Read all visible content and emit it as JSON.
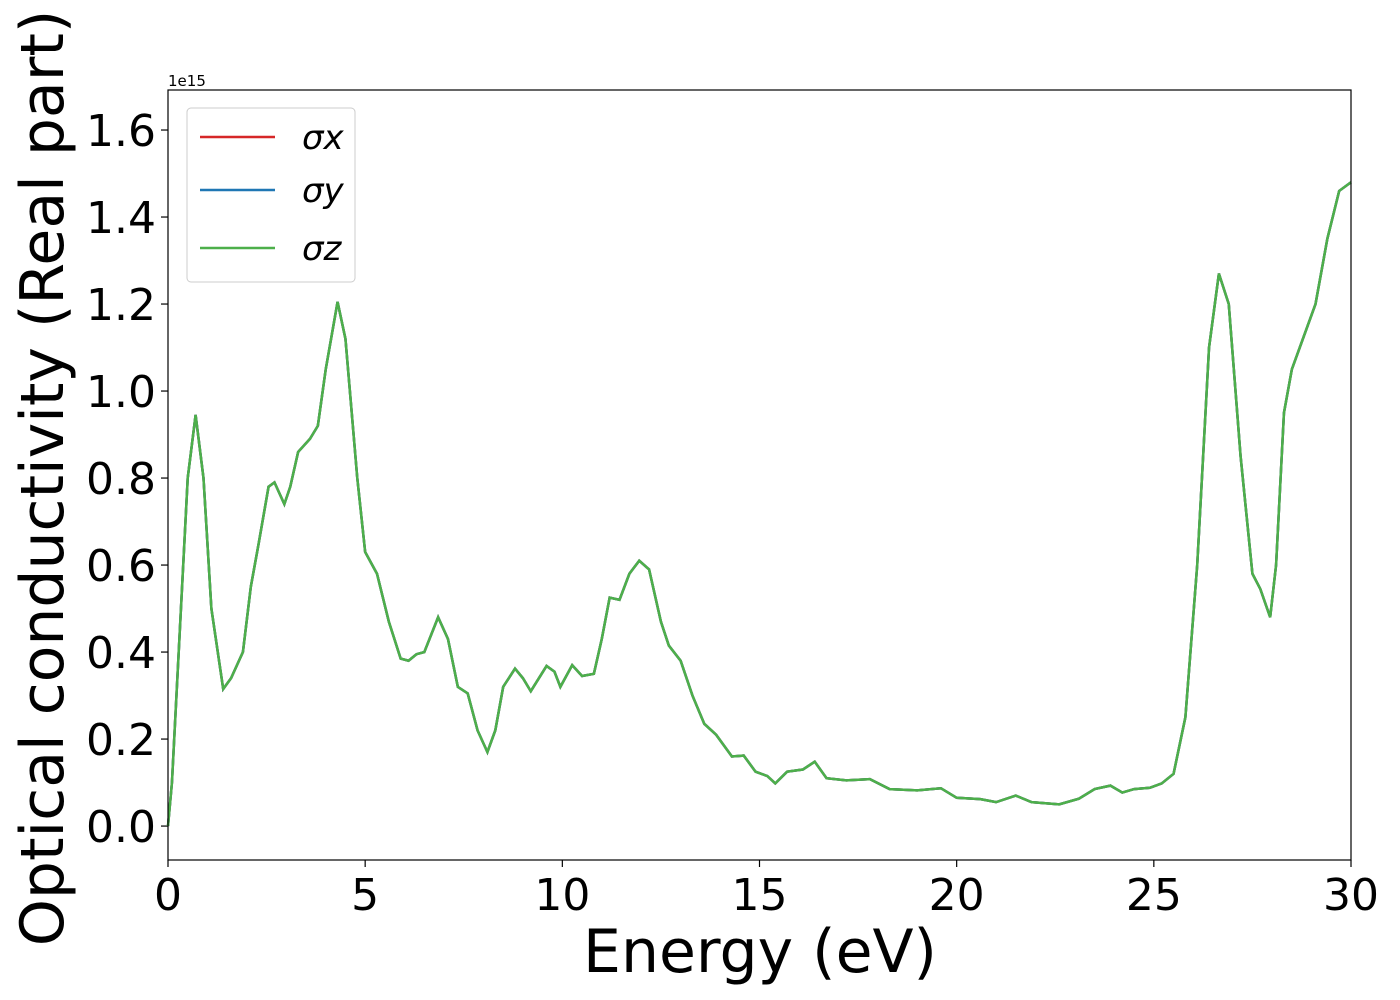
{
  "chart_data": {
    "type": "line",
    "xlabel": "Energy (eV)",
    "ylabel": "Optical conductivity (Real part)",
    "offset_text": "1e15",
    "legend": "upper left",
    "xlim": [
      0,
      30
    ],
    "ylim": [
      -0.078,
      1.692
    ],
    "xticks": [
      0,
      5,
      10,
      15,
      20,
      25,
      30
    ],
    "yticks": [
      {
        "value": 0,
        "label": "0.0"
      },
      {
        "value": 0.2,
        "label": "0.2"
      },
      {
        "value": 0.4,
        "label": "0.4"
      },
      {
        "value": 0.6,
        "label": "0.6"
      },
      {
        "value": 0.8,
        "label": "0.8"
      },
      {
        "value": 1,
        "label": "1.0"
      },
      {
        "value": 1.2,
        "label": "1.2"
      },
      {
        "value": 1.4,
        "label": "1.4"
      },
      {
        "value": 1.6,
        "label": "1.6"
      }
    ],
    "x": [
      0,
      0.1,
      0.3,
      0.5,
      0.7,
      0.9,
      1.1,
      1.4,
      1.6,
      1.9,
      2.1,
      2.3,
      2.55,
      2.7,
      2.95,
      3.1,
      3.3,
      3.6,
      3.8,
      4.0,
      4.3,
      4.5,
      4.8,
      5.0,
      5.3,
      5.6,
      5.9,
      6.1,
      6.3,
      6.5,
      6.85,
      7.1,
      7.35,
      7.6,
      7.85,
      8.1,
      8.3,
      8.5,
      8.8,
      9.0,
      9.2,
      9.6,
      9.8,
      9.95,
      10.25,
      10.5,
      10.8,
      11.0,
      11.2,
      11.45,
      11.7,
      11.95,
      12.2,
      12.5,
      12.7,
      13.0,
      13.3,
      13.6,
      13.9,
      14.3,
      14.6,
      14.9,
      15.2,
      15.4,
      15.7,
      16.1,
      16.4,
      16.7,
      17.2,
      17.8,
      18.3,
      19.0,
      19.6,
      20.0,
      20.6,
      21.0,
      21.5,
      21.9,
      22.6,
      23.1,
      23.5,
      23.9,
      24.2,
      24.5,
      24.9,
      25.2,
      25.5,
      25.8,
      26.1,
      26.4,
      26.65,
      26.9,
      27.2,
      27.5,
      27.7,
      27.95,
      28.1,
      28.3,
      28.5,
      28.7,
      28.9,
      29.1,
      29.4,
      29.7,
      30.0
    ],
    "series": [
      {
        "name": "σx",
        "color": "#d62728",
        "values": [
          0,
          0.1,
          0.45,
          0.8,
          0.945,
          0.8,
          0.5,
          0.315,
          0.34,
          0.4,
          0.55,
          0.65,
          0.78,
          0.79,
          0.74,
          0.78,
          0.86,
          0.89,
          0.92,
          1.05,
          1.205,
          1.12,
          0.8,
          0.63,
          0.58,
          0.47,
          0.385,
          0.38,
          0.395,
          0.4,
          0.48,
          0.43,
          0.32,
          0.305,
          0.22,
          0.17,
          0.22,
          0.32,
          0.362,
          0.34,
          0.31,
          0.368,
          0.355,
          0.32,
          0.37,
          0.345,
          0.35,
          0.43,
          0.525,
          0.52,
          0.58,
          0.61,
          0.59,
          0.47,
          0.415,
          0.38,
          0.3,
          0.235,
          0.21,
          0.16,
          0.162,
          0.125,
          0.115,
          0.098,
          0.125,
          0.13,
          0.148,
          0.11,
          0.105,
          0.108,
          0.085,
          0.082,
          0.087,
          0.065,
          0.062,
          0.055,
          0.07,
          0.055,
          0.05,
          0.063,
          0.085,
          0.093,
          0.077,
          0.085,
          0.088,
          0.098,
          0.12,
          0.25,
          0.6,
          1.1,
          1.27,
          1.2,
          0.85,
          0.58,
          0.545,
          0.48,
          0.6,
          0.95,
          1.05,
          1.1,
          1.15,
          1.2,
          1.35,
          1.46,
          1.48
        ]
      },
      {
        "name": "σy",
        "color": "#1f77b4",
        "values": [
          0,
          0.1,
          0.45,
          0.8,
          0.945,
          0.8,
          0.5,
          0.315,
          0.34,
          0.4,
          0.55,
          0.65,
          0.78,
          0.79,
          0.74,
          0.78,
          0.86,
          0.89,
          0.92,
          1.05,
          1.205,
          1.12,
          0.8,
          0.63,
          0.58,
          0.47,
          0.385,
          0.38,
          0.395,
          0.4,
          0.48,
          0.43,
          0.32,
          0.305,
          0.22,
          0.17,
          0.22,
          0.32,
          0.362,
          0.34,
          0.31,
          0.368,
          0.355,
          0.32,
          0.37,
          0.345,
          0.35,
          0.43,
          0.525,
          0.52,
          0.58,
          0.61,
          0.59,
          0.47,
          0.415,
          0.38,
          0.3,
          0.235,
          0.21,
          0.16,
          0.162,
          0.125,
          0.115,
          0.098,
          0.125,
          0.13,
          0.148,
          0.11,
          0.105,
          0.108,
          0.085,
          0.082,
          0.087,
          0.065,
          0.062,
          0.055,
          0.07,
          0.055,
          0.05,
          0.063,
          0.085,
          0.093,
          0.077,
          0.085,
          0.088,
          0.098,
          0.12,
          0.25,
          0.6,
          1.1,
          1.27,
          1.2,
          0.85,
          0.58,
          0.545,
          0.48,
          0.6,
          0.95,
          1.05,
          1.1,
          1.15,
          1.2,
          1.35,
          1.46,
          1.48
        ]
      },
      {
        "name": "σz",
        "color": "#4daf4a",
        "values": [
          0,
          0.1,
          0.45,
          0.8,
          0.945,
          0.8,
          0.5,
          0.315,
          0.34,
          0.4,
          0.55,
          0.65,
          0.78,
          0.79,
          0.74,
          0.78,
          0.86,
          0.89,
          0.92,
          1.05,
          1.205,
          1.12,
          0.8,
          0.63,
          0.58,
          0.47,
          0.385,
          0.38,
          0.395,
          0.4,
          0.48,
          0.43,
          0.32,
          0.305,
          0.22,
          0.17,
          0.22,
          0.32,
          0.362,
          0.34,
          0.31,
          0.368,
          0.355,
          0.32,
          0.37,
          0.345,
          0.35,
          0.43,
          0.525,
          0.52,
          0.58,
          0.61,
          0.59,
          0.47,
          0.415,
          0.38,
          0.3,
          0.235,
          0.21,
          0.16,
          0.162,
          0.125,
          0.115,
          0.098,
          0.125,
          0.13,
          0.148,
          0.11,
          0.105,
          0.108,
          0.085,
          0.082,
          0.087,
          0.065,
          0.062,
          0.055,
          0.07,
          0.055,
          0.05,
          0.063,
          0.085,
          0.093,
          0.077,
          0.085,
          0.088,
          0.098,
          0.12,
          0.25,
          0.6,
          1.1,
          1.27,
          1.2,
          0.85,
          0.58,
          0.545,
          0.48,
          0.6,
          0.95,
          1.05,
          1.1,
          1.15,
          1.2,
          1.35,
          1.46,
          1.48
        ]
      }
    ]
  }
}
